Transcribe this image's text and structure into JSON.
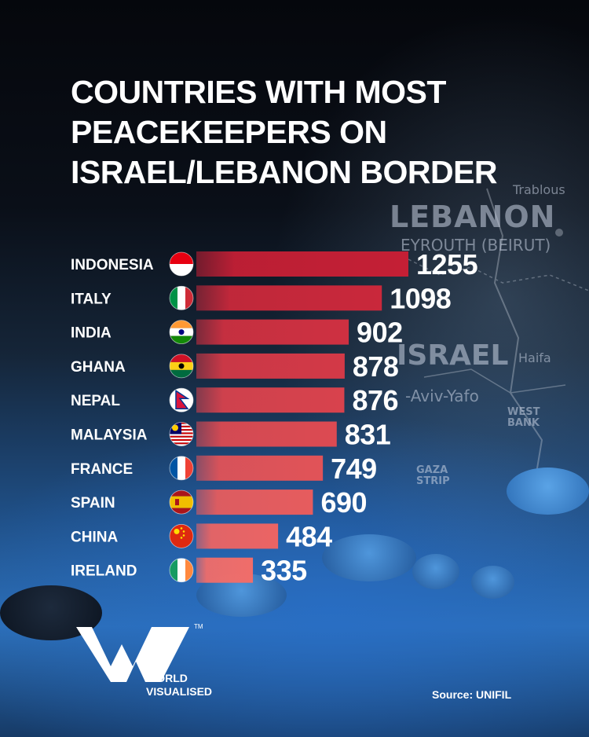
{
  "title_lines": [
    "COUNTRIES WITH MOST",
    "PEACEKEEPERS ON",
    "ISRAEL/LEBANON BORDER"
  ],
  "map_labels": [
    "Trablous",
    "LEBANON",
    "EYROUTH (BEIRUT)",
    "ISRAEL",
    "Haifa",
    "-Aviv-Yafo",
    "WEST BANK",
    "GAZA STRIP"
  ],
  "brand": {
    "name_line1": "WORLD",
    "name_line2": "VISUALISED",
    "tm": "TM"
  },
  "source": "Source: UNIFIL",
  "colors": {
    "bar_top": "#c41f35",
    "bar_bottom": "#f06d6a",
    "text": "#ffffff"
  },
  "chart_data": {
    "type": "bar",
    "orientation": "horizontal",
    "title": "COUNTRIES WITH MOST PEACEKEEPERS ON ISRAEL/LEBANON BORDER",
    "categories": [
      "INDONESIA",
      "ITALY",
      "INDIA",
      "GHANA",
      "NEPAL",
      "MALAYSIA",
      "FRANCE",
      "SPAIN",
      "CHINA",
      "IRELAND"
    ],
    "values": [
      1255,
      1098,
      902,
      878,
      876,
      831,
      749,
      690,
      484,
      335
    ],
    "flags": [
      "indonesia-flag",
      "italy-flag",
      "india-flag",
      "ghana-flag",
      "nepal-flag",
      "malaysia-flag",
      "france-flag",
      "spain-flag",
      "china-flag",
      "ireland-flag"
    ],
    "xlabel": "",
    "ylabel": "",
    "xlim": [
      0,
      1255
    ],
    "grid": false
  }
}
